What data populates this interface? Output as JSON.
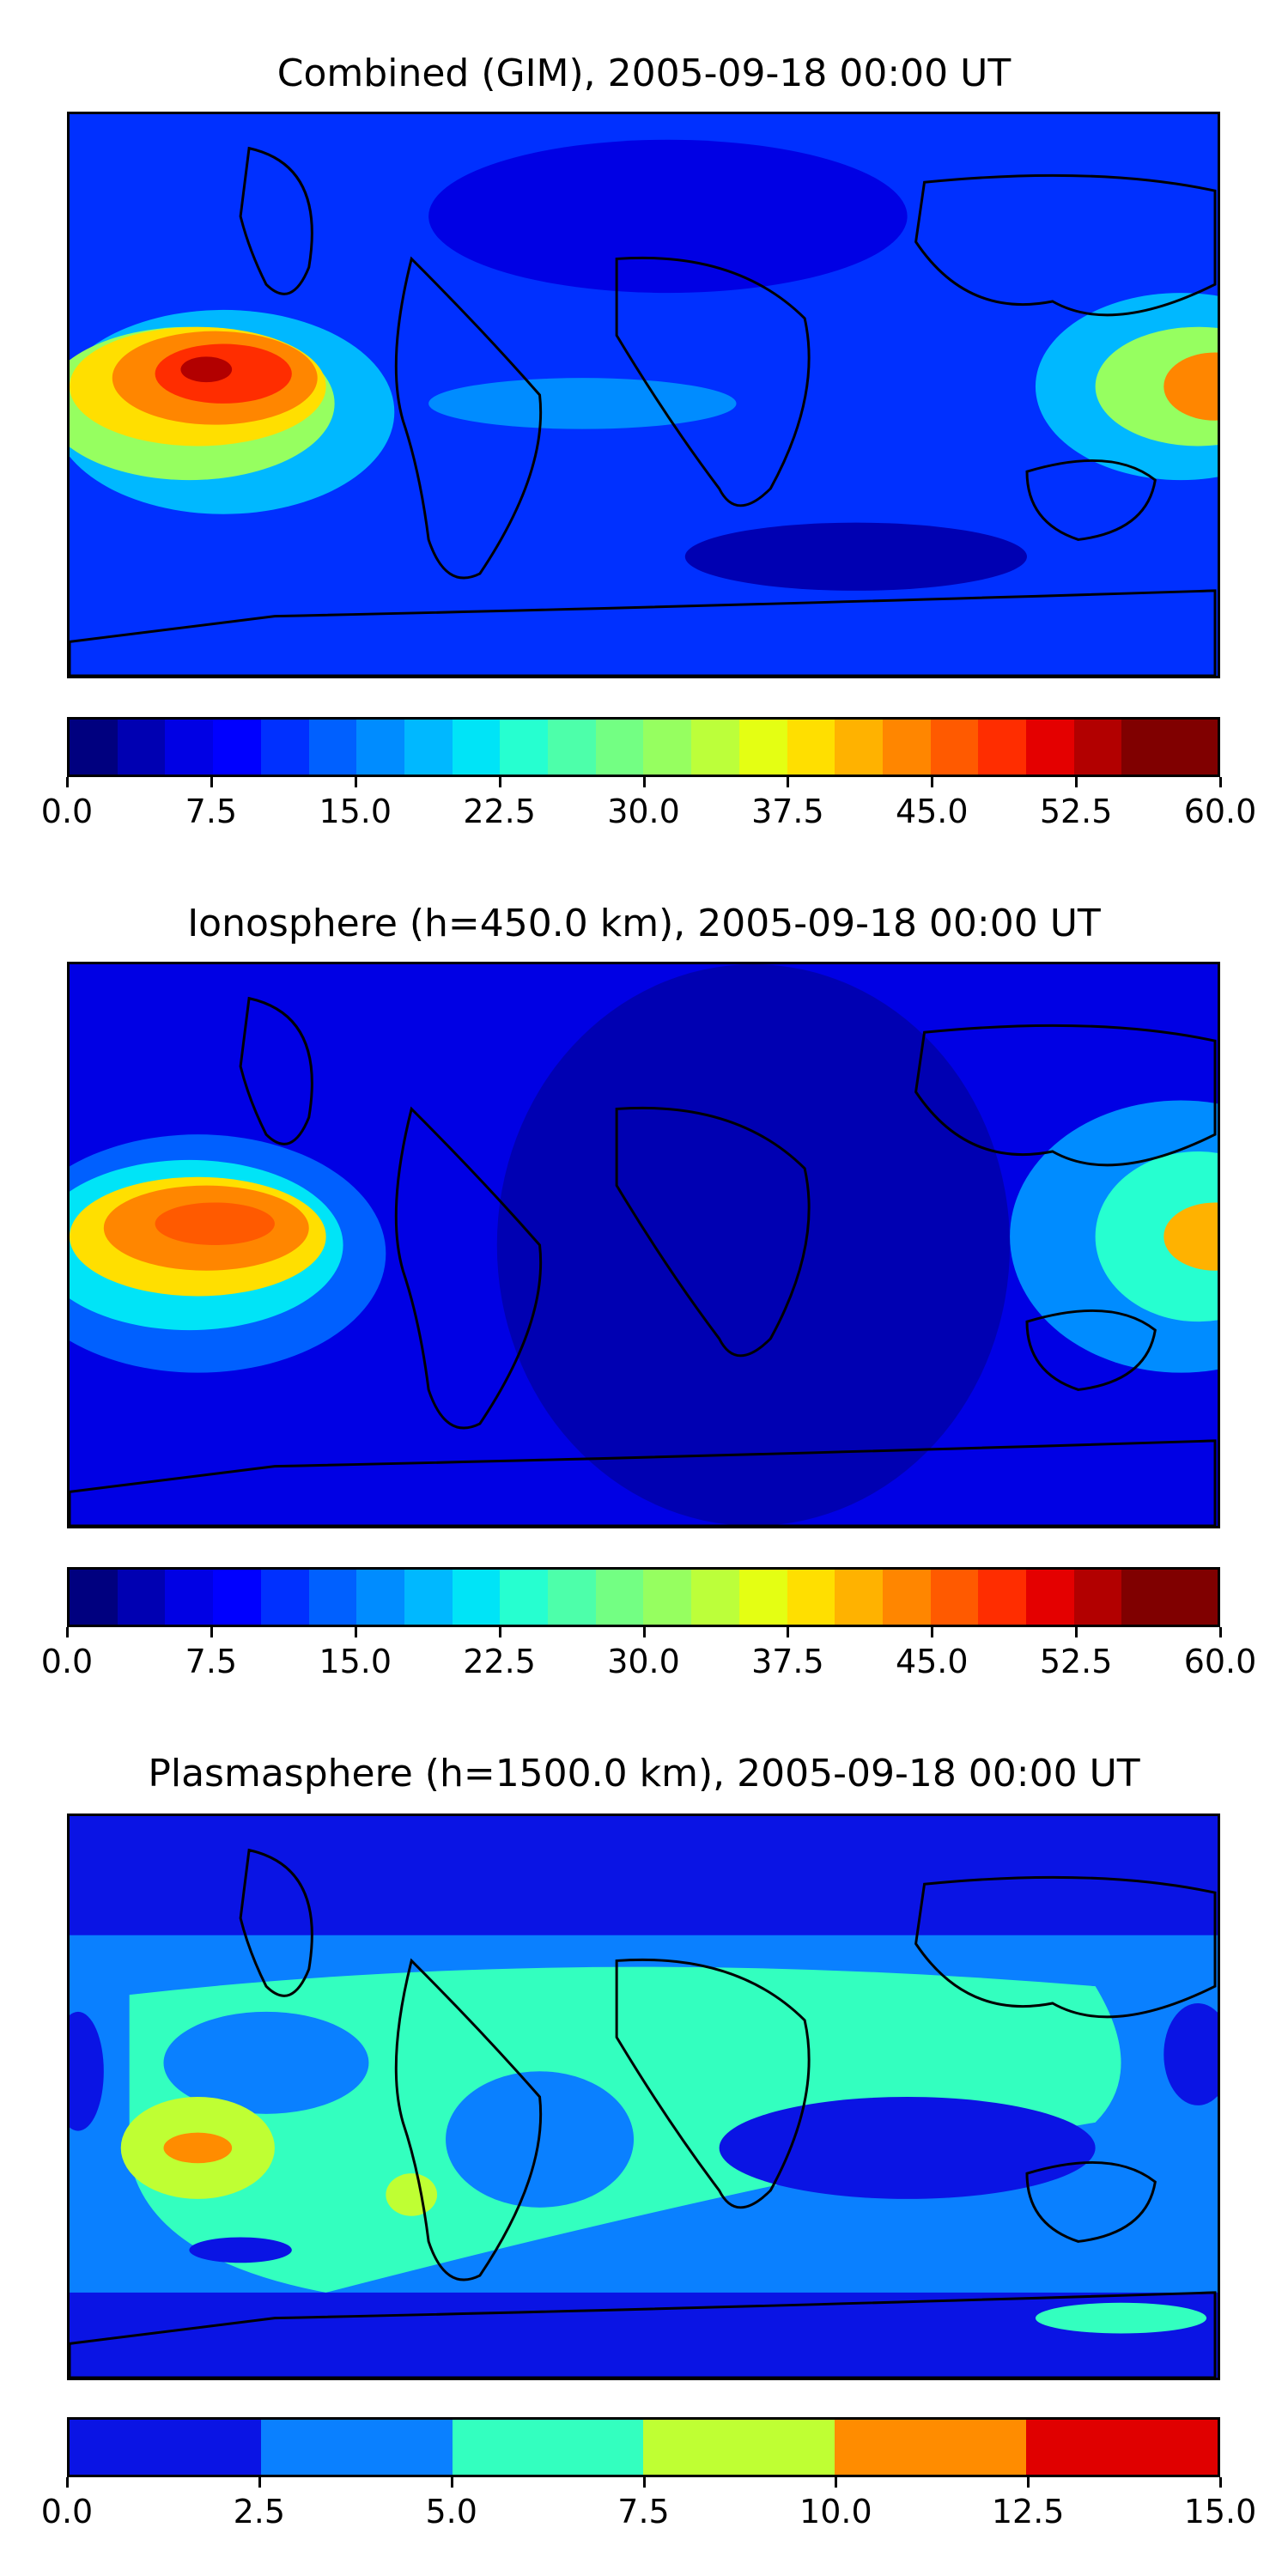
{
  "panels": [
    {
      "title": "Combined (GIM), 2005-09-18 00:00 UT",
      "colorbar": {
        "ticks": [
          "0.0",
          "7.5",
          "15.0",
          "22.5",
          "30.0",
          "37.5",
          "45.0",
          "52.5",
          "60.0"
        ],
        "min": 0,
        "max": 60,
        "levels": 24
      }
    },
    {
      "title": "Ionosphere  (h=450.0 km), 2005-09-18 00:00 UT",
      "colorbar": {
        "ticks": [
          "0.0",
          "7.5",
          "15.0",
          "22.5",
          "30.0",
          "37.5",
          "45.0",
          "52.5",
          "60.0"
        ],
        "min": 0,
        "max": 60,
        "levels": 24
      }
    },
    {
      "title": "Plasmasphere (h=1500.0 km), 2005-09-18 00:00 UT",
      "colorbar": {
        "ticks": [
          "0.0",
          "2.5",
          "5.0",
          "7.5",
          "10.0",
          "12.5",
          "15.0"
        ],
        "min": 0,
        "max": 15,
        "levels": 6
      }
    }
  ],
  "colormap": "jet",
  "colors": {
    "jet24": [
      "#00007f",
      "#0000b2",
      "#0000e4",
      "#0000ff",
      "#0030ff",
      "#0060ff",
      "#008cff",
      "#00b8ff",
      "#00e4f7",
      "#26ffd0",
      "#4dffaa",
      "#73ff83",
      "#96ff60",
      "#bcff3a",
      "#e4ff13",
      "#ffdf00",
      "#ffb200",
      "#ff8600",
      "#ff5a00",
      "#ff2d00",
      "#e40000",
      "#b20000",
      "#800000",
      "#800000"
    ],
    "jet6": [
      "#0a14e4",
      "#0a80ff",
      "#33ffbf",
      "#bfff33",
      "#ff8c00",
      "#e00000"
    ]
  }
}
